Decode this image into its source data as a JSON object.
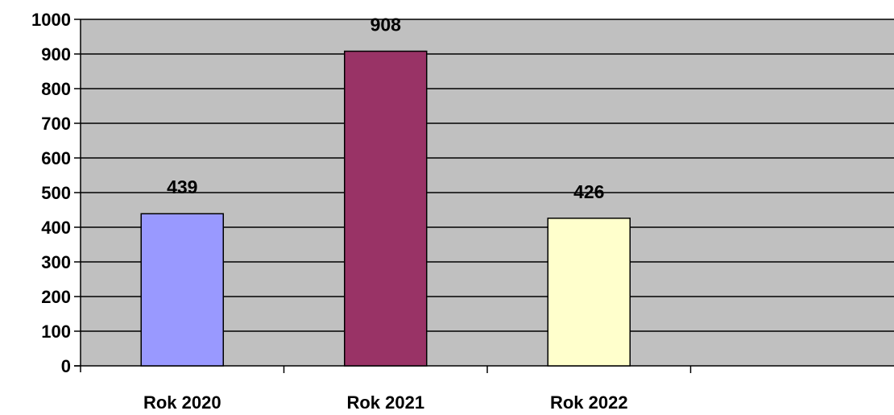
{
  "chart_data": {
    "type": "bar",
    "categories": [
      "Rok 2020",
      "Rok 2021",
      "Rok 2022"
    ],
    "values": [
      439,
      908,
      426
    ],
    "data_labels": [
      "439",
      "908",
      "426"
    ],
    "ylim": [
      0,
      1000
    ],
    "yticks": [
      0,
      100,
      200,
      300,
      400,
      500,
      600,
      700,
      800,
      900,
      1000
    ],
    "ytick_labels": [
      "0",
      "100",
      "200",
      "300",
      "400",
      "500",
      "600",
      "700",
      "800",
      "900",
      "1000"
    ],
    "grid": true,
    "legend": "none",
    "colors": {
      "plot_background": "#c0c0c0",
      "gridline": "#000000",
      "bars": [
        "#9999ff",
        "#993366",
        "#ffffcc"
      ],
      "bar_outline": "#000000"
    }
  }
}
